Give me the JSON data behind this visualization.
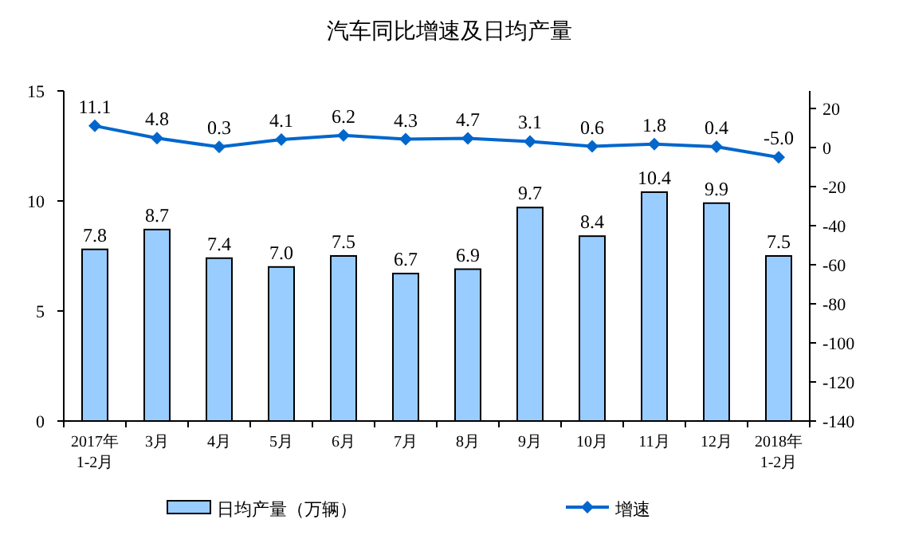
{
  "chart_data": {
    "type": "bar",
    "title": "汽车同比增速及日均产量",
    "categories": [
      "2017年 1-2月",
      "3月",
      "4月",
      "5月",
      "6月",
      "7月",
      "8月",
      "9月",
      "10月",
      "11月",
      "12月",
      "2018年 1-2月"
    ],
    "series": [
      {
        "name": "日均产量（万辆）",
        "color": "#99ccff",
        "values": [
          7.8,
          8.7,
          7.4,
          7.0,
          7.5,
          6.7,
          6.9,
          9.7,
          8.4,
          10.4,
          9.9,
          7.5
        ],
        "value_labels": [
          "7.8",
          "8.7",
          "7.4",
          "7.0",
          "7.5",
          "6.7",
          "6.9",
          "9.7",
          "8.4",
          "10.4",
          "9.9",
          "7.5"
        ]
      },
      {
        "name": "增速",
        "type": "line",
        "axis": "y2",
        "color": "#0066cc",
        "marker": "diamond",
        "values": [
          11.1,
          4.8,
          0.3,
          4.1,
          6.2,
          4.3,
          4.7,
          3.1,
          0.6,
          1.8,
          0.4,
          -5.0
        ],
        "value_labels": [
          "11.1",
          "4.8",
          "0.3",
          "4.1",
          "6.2",
          "4.3",
          "4.7",
          "3.1",
          "0.6",
          "1.8",
          "0.4",
          "-5.0"
        ]
      }
    ],
    "ylim": [
      0,
      15
    ],
    "yticks": [
      0,
      5,
      10,
      15
    ],
    "y2lim": [
      -140,
      29
    ],
    "y2ticks": [
      -140,
      -120,
      -100,
      -80,
      -60,
      -40,
      -20,
      0,
      20
    ],
    "legend": "bottom"
  }
}
